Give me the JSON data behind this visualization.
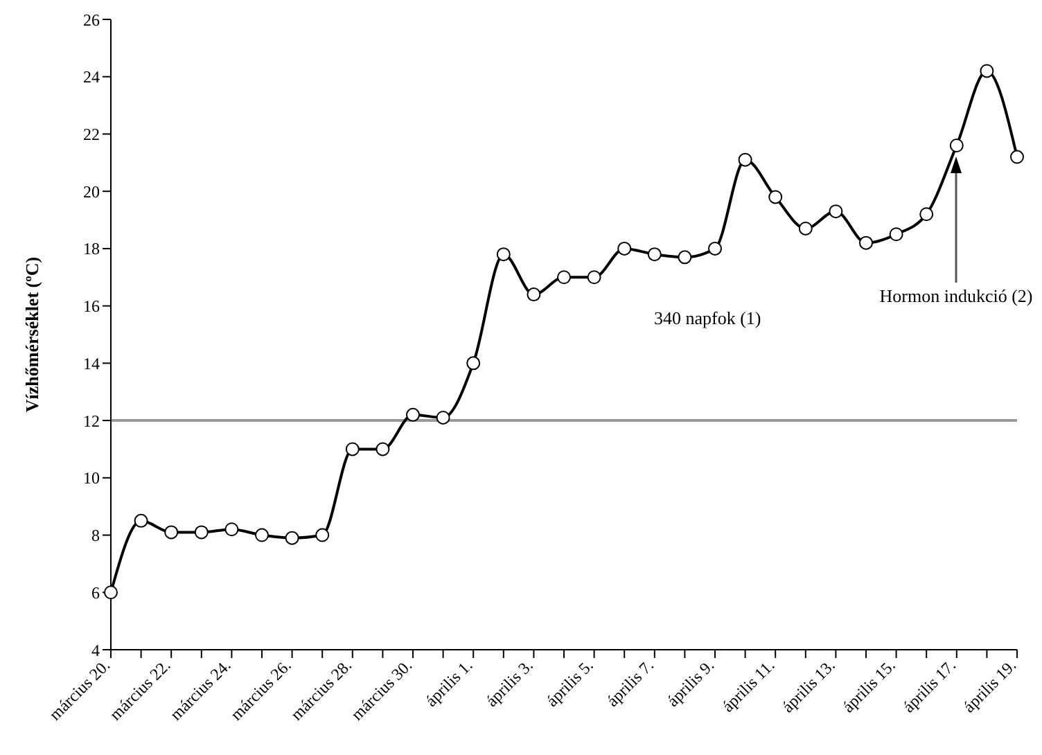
{
  "chart_data": {
    "type": "line",
    "ylabel": "Vízhőmérséklet (ºC)",
    "categories": [
      "március 20.",
      null,
      "március 22.",
      null,
      "március 24.",
      null,
      "március 26.",
      null,
      "március 28.",
      null,
      "március 30.",
      null,
      "április 1.",
      null,
      "április 3.",
      null,
      "április 5.",
      null,
      "április 7.",
      null,
      "április 9.",
      null,
      "április 11.",
      null,
      "április 13.",
      null,
      "április 15.",
      null,
      "április 17.",
      null,
      "április 19."
    ],
    "series": [
      {
        "color": "#000000",
        "values": [
          6,
          8.5,
          8.1,
          8.1,
          8.2,
          8,
          7.9,
          8,
          11,
          11,
          12.2,
          12.1,
          14,
          17.8,
          16.4,
          17,
          17,
          18,
          17.8,
          17.7,
          18,
          21.1,
          19.8,
          18.7,
          19.3,
          18.2,
          18.5,
          19.2,
          21.6,
          24.2,
          21.2
        ]
      }
    ],
    "ylim": [
      4,
      26
    ],
    "yticks": [
      4,
      6,
      8,
      10,
      12,
      14,
      16,
      18,
      20,
      22,
      24,
      26
    ],
    "grid": false,
    "marker": "circle",
    "line_style": "solid",
    "ref_lines": [
      {
        "axis": "y",
        "value": 12,
        "color": "#999999"
      }
    ],
    "annotations": [
      "340 napfok (1)",
      "Hormon indukció (2)"
    ]
  }
}
